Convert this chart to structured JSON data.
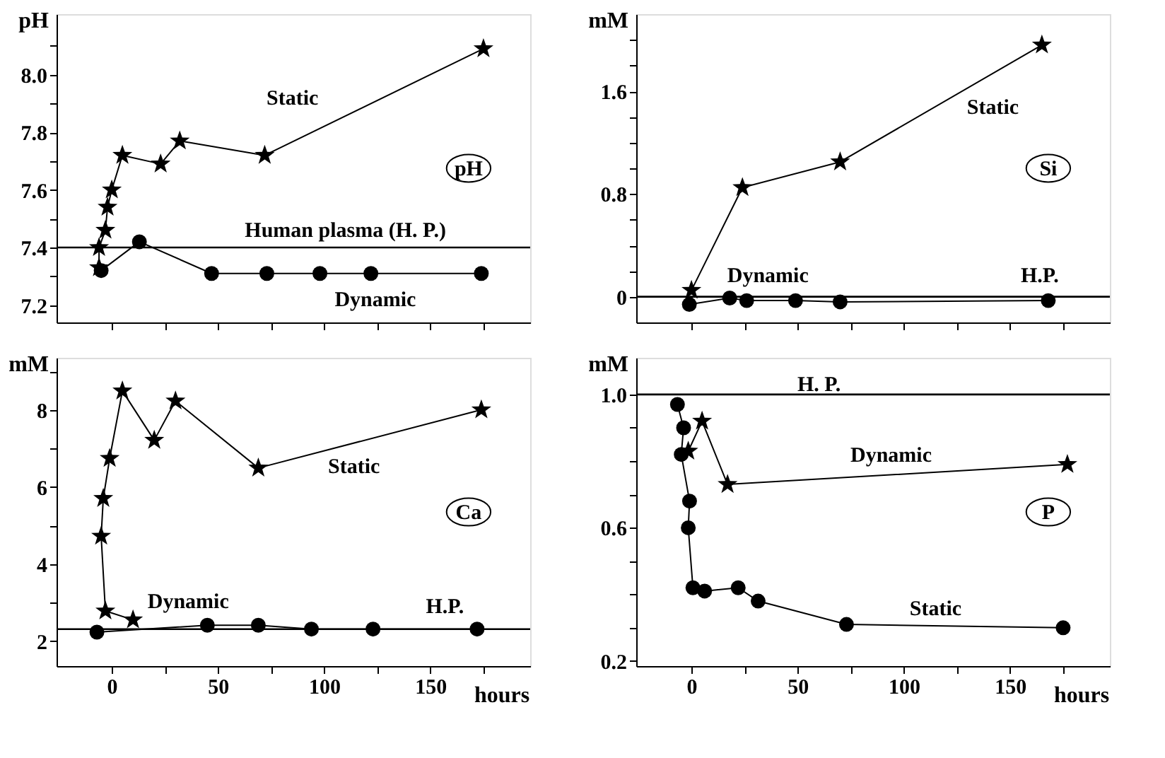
{
  "chart_data": [
    {
      "type": "line",
      "title": "pH",
      "ylabel": "pH",
      "tick_labels": "y",
      "xlim": [
        -26,
        197
      ],
      "xticks": [
        0,
        50,
        100,
        150,
        {
          "value": 25,
          "label": null
        },
        {
          "value": 75,
          "label": null
        },
        {
          "value": 125,
          "label": null
        },
        {
          "value": 175,
          "label": null
        }
      ],
      "ylim": [
        7.14,
        8.21
      ],
      "yticks": [
        7.2,
        7.4,
        7.6,
        7.8,
        {
          "value": 8,
          "label": "8.0"
        },
        {
          "value": 7.3,
          "label": null
        },
        {
          "value": 7.5,
          "label": null
        },
        {
          "value": 7.7,
          "label": null
        },
        {
          "value": 7.9,
          "label": null
        },
        {
          "value": 8.1,
          "label": null
        }
      ],
      "series": [
        {
          "color": "#000000",
          "marker": "star",
          "x": [
            -6,
            -6,
            -3,
            -2,
            0,
            5,
            23,
            32,
            72,
            175
          ],
          "values": [
            7.33,
            7.4,
            7.46,
            7.54,
            7.6,
            7.72,
            7.69,
            7.77,
            7.72,
            8.09
          ]
        },
        {
          "color": "#000000",
          "marker": "circle",
          "x": [
            -5,
            13,
            47,
            73,
            98,
            122,
            174
          ],
          "values": [
            7.32,
            7.42,
            7.31,
            7.31,
            7.31,
            7.31,
            7.31
          ]
        }
      ],
      "ref_lines": [
        {
          "axis": "y",
          "value": 7.4
        }
      ],
      "annotations": [
        "Static",
        "Human plasma (H. P.)",
        "Dynamic"
      ]
    },
    {
      "type": "line",
      "title": "Si",
      "ylabel": "mM",
      "tick_labels": "y",
      "xlim": [
        -26,
        197
      ],
      "xticks": [
        0,
        50,
        100,
        150,
        {
          "value": 25,
          "label": null
        },
        {
          "value": 75,
          "label": null
        },
        {
          "value": 125,
          "label": null
        },
        {
          "value": 175,
          "label": null
        }
      ],
      "ylim": [
        -0.2,
        2.2
      ],
      "yticks": [
        0,
        0.8,
        1.6,
        {
          "value": 0.2,
          "label": null
        },
        {
          "value": 0.4,
          "label": null
        },
        {
          "value": 0.6,
          "label": null
        },
        {
          "value": 1.0,
          "label": null
        },
        {
          "value": 1.2,
          "label": null
        },
        {
          "value": 1.4,
          "label": null
        },
        {
          "value": 1.8,
          "label": null
        },
        {
          "value": 2.0,
          "label": null
        }
      ],
      "series": [
        {
          "color": "#000000",
          "marker": "star",
          "x": [
            0,
            24,
            70,
            165
          ],
          "values": [
            0.05,
            0.85,
            1.05,
            1.96
          ]
        },
        {
          "color": "#000000",
          "marker": "circle",
          "x": [
            -1,
            18,
            26,
            49,
            70,
            168
          ],
          "values": [
            -0.06,
            -0.01,
            -0.03,
            -0.03,
            -0.04,
            -0.03
          ]
        }
      ],
      "ref_lines": [
        {
          "axis": "y",
          "value": 0
        }
      ],
      "annotations": [
        "Static",
        "Dynamic",
        "H.P."
      ]
    },
    {
      "type": "line",
      "title": "Ca",
      "ylabel": "mM",
      "xlabel": "hours",
      "xlim": [
        -26,
        197
      ],
      "xticks": [
        0,
        50,
        100,
        150,
        {
          "value": 25,
          "label": null
        },
        {
          "value": 75,
          "label": null
        },
        {
          "value": 125,
          "label": null
        },
        {
          "value": 175,
          "label": null
        }
      ],
      "ylim": [
        1.35,
        9.35
      ],
      "yticks": [
        2,
        4,
        6,
        8,
        {
          "value": 3,
          "label": null
        },
        {
          "value": 5,
          "label": null
        },
        {
          "value": 7,
          "label": null
        },
        {
          "value": 9,
          "label": null
        }
      ],
      "series": [
        {
          "color": "#000000",
          "marker": "star",
          "x": [
            10,
            -3,
            -5,
            -4,
            -1,
            5,
            20,
            30,
            69,
            174
          ],
          "values": [
            2.55,
            2.78,
            4.72,
            5.7,
            6.74,
            8.49,
            7.21,
            8.23,
            6.49,
            8.0
          ]
        },
        {
          "color": "#000000",
          "marker": "circle",
          "x": [
            -7,
            45,
            69,
            94,
            123,
            172
          ],
          "values": [
            2.23,
            2.41,
            2.41,
            2.31,
            2.31,
            2.31
          ]
        }
      ],
      "ref_lines": [
        {
          "axis": "y",
          "value": 2.31
        }
      ],
      "annotations": [
        "Static",
        "Dynamic",
        "H.P."
      ]
    },
    {
      "type": "line",
      "title": "P",
      "ylabel": "mM",
      "xlabel": "hours",
      "xlim": [
        -26,
        197
      ],
      "xticks": [
        0,
        50,
        100,
        150,
        {
          "value": 25,
          "label": null
        },
        {
          "value": 75,
          "label": null
        },
        {
          "value": 125,
          "label": null
        },
        {
          "value": 175,
          "label": null
        }
      ],
      "ylim": [
        0.185,
        1.11
      ],
      "yticks": [
        0.2,
        0.6,
        {
          "value": 1,
          "label": "1.0"
        },
        {
          "value": 0.3,
          "label": null
        },
        {
          "value": 0.4,
          "label": null
        },
        {
          "value": 0.5,
          "label": null
        },
        {
          "value": 0.7,
          "label": null
        },
        {
          "value": 0.8,
          "label": null
        },
        {
          "value": 0.9,
          "label": null
        }
      ],
      "series": [
        {
          "color": "#000000",
          "marker": "star",
          "x": [
            -1.5,
            5,
            17,
            177
          ],
          "values": [
            0.83,
            0.92,
            0.73,
            0.79
          ]
        },
        {
          "color": "#000000",
          "marker": "circle",
          "x": [
            -6.6,
            -3.7,
            -4.8,
            -0.9,
            -1.5,
            0.7,
            6.2,
            22,
            31.4,
            73,
            175
          ],
          "values": [
            0.97,
            0.9,
            0.82,
            0.68,
            0.6,
            0.42,
            0.41,
            0.42,
            0.38,
            0.31,
            0.3
          ]
        }
      ],
      "ref_lines": [
        {
          "axis": "y",
          "value": 1.0
        }
      ],
      "annotations": [
        "Dynamic",
        "Static",
        "H. P."
      ]
    }
  ]
}
